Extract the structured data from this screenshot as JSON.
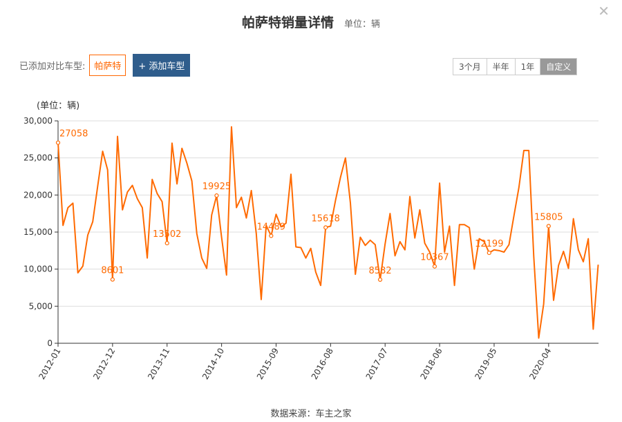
{
  "header": {
    "title": "帕萨特销量详情",
    "unit": "单位：辆",
    "close_glyph": "✕"
  },
  "compare": {
    "label": "已添加对比车型:",
    "model": "帕萨特",
    "add_button": "+ 添加车型"
  },
  "range": {
    "options": [
      "3个月",
      "半年",
      "1年",
      "自定义"
    ],
    "active": "自定义"
  },
  "footer": {
    "source": "数据来源：车主之家"
  },
  "colors": {
    "line": "#ff6a00",
    "grid": "#dddddd",
    "axis": "#333333"
  },
  "chart_data": {
    "type": "line",
    "ylabel": "(单位：辆)",
    "ylim": [
      0,
      30000
    ],
    "yticks": [
      "0",
      "5,000",
      "10,000",
      "15,000",
      "20,000",
      "25,000",
      "30,000"
    ],
    "x_tick_labels": [
      "2012-01",
      "2012-12",
      "2013-11",
      "2014-10",
      "2015-09",
      "2016-08",
      "2017-07",
      "2018-06",
      "2019-05",
      "2020-04"
    ],
    "x_start": "2012-01",
    "grid": true,
    "legend": "none",
    "series": [
      {
        "values": [
          27058,
          15900,
          18300,
          18900,
          9500,
          10400,
          14600,
          16400,
          21200,
          25900,
          23400,
          8601,
          27900,
          18000,
          20400,
          21300,
          19500,
          18300,
          11500,
          22100,
          20200,
          19100,
          13502,
          27000,
          21500,
          26300,
          24300,
          21900,
          14800,
          11500,
          10100,
          17300,
          19925,
          14300,
          9200,
          29200,
          18300,
          19700,
          16900,
          20600,
          14800,
          5900,
          15900,
          14489,
          17400,
          15700,
          16200,
          22800,
          13000,
          12900,
          11500,
          12800,
          9600,
          7800,
          15618,
          15800,
          19300,
          22400,
          25000,
          18900,
          9300,
          14300,
          13200,
          13900,
          13300,
          8582,
          13400,
          17500,
          11800,
          13700,
          12600,
          19800,
          14200,
          18000,
          13500,
          12300,
          10367,
          21600,
          12300,
          15800,
          7800,
          16000,
          16000,
          15600,
          10000,
          14100,
          13700,
          12199,
          12600,
          12500,
          12300,
          13300,
          17200,
          21000,
          26000,
          26000,
          11700,
          700,
          5300,
          15805,
          5800,
          10500,
          12400,
          10100,
          16800,
          12600,
          11000,
          14100,
          1900,
          10600
        ]
      }
    ],
    "data_labels": [
      {
        "index": 0,
        "text": "27058"
      },
      {
        "index": 11,
        "text": "8601"
      },
      {
        "index": 22,
        "text": "13502"
      },
      {
        "index": 32,
        "text": "19925"
      },
      {
        "index": 43,
        "text": "14489"
      },
      {
        "index": 54,
        "text": "15618"
      },
      {
        "index": 65,
        "text": "8582"
      },
      {
        "index": 76,
        "text": "10367"
      },
      {
        "index": 87,
        "text": "12199"
      },
      {
        "index": 99,
        "text": "15805"
      }
    ]
  }
}
